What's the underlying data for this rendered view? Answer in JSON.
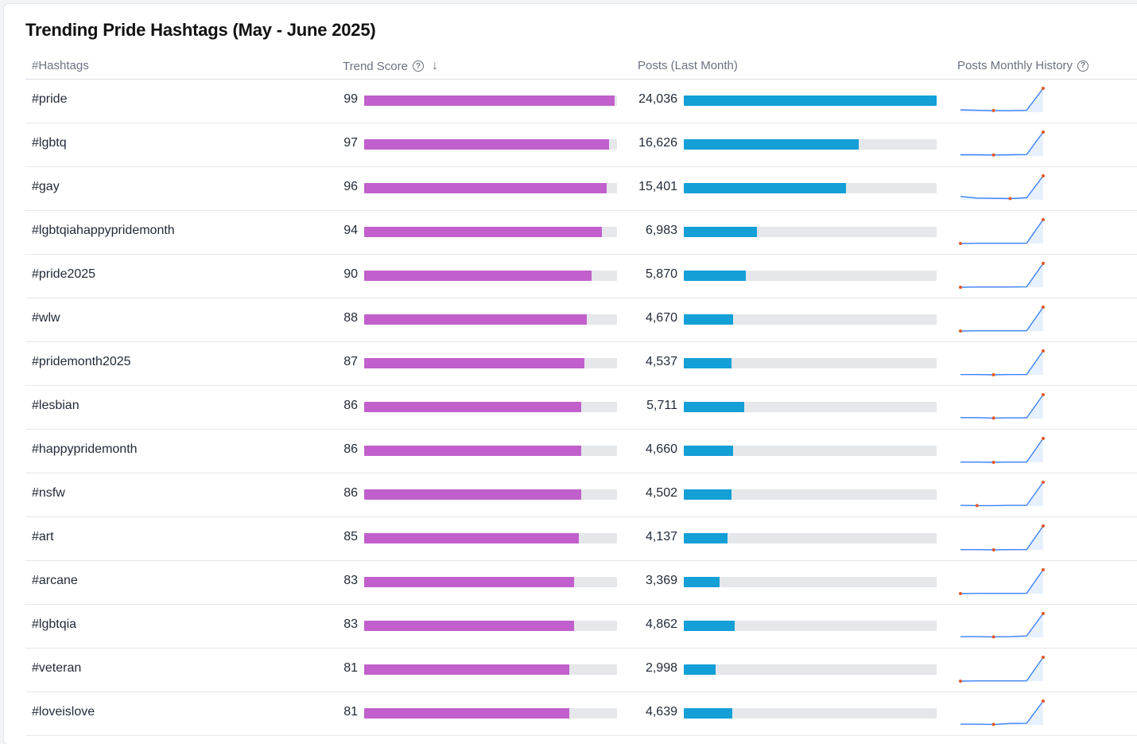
{
  "title": "Trending Pride Hashtags (May - June 2025)",
  "headers": {
    "hashtags": "#Hashtags",
    "trend_score": "Trend Score",
    "posts": "Posts (Last Month)",
    "history": "Posts Monthly History"
  },
  "colors": {
    "score_bar": "#c160cc",
    "posts_bar": "#149fd7",
    "track": "#e5e7eb",
    "spark_line": "#3b82f6",
    "spark_dot": "#e2582a"
  },
  "scale": {
    "score_max": 100,
    "posts_max": 24036
  },
  "rows": [
    {
      "tag": "#pride",
      "score": 99,
      "posts": "24,036",
      "posts_value": 24036,
      "history": [
        10,
        8,
        7,
        7,
        8,
        100
      ],
      "min_index": 2
    },
    {
      "tag": "#lgbtq",
      "score": 97,
      "posts": "16,626",
      "posts_value": 16626,
      "history": [
        5,
        5,
        4,
        5,
        6,
        100
      ],
      "min_index": 2
    },
    {
      "tag": "#gay",
      "score": 96,
      "posts": "15,401",
      "posts_value": 15401,
      "history": [
        14,
        7,
        6,
        5,
        8,
        100
      ],
      "min_index": 3
    },
    {
      "tag": "#lgbtqiahappypridemonth",
      "score": 94,
      "posts": "6,983",
      "posts_value": 6983,
      "history": [
        0,
        1,
        1,
        1,
        1,
        100
      ],
      "min_index": 0
    },
    {
      "tag": "#pride2025",
      "score": 90,
      "posts": "5,870",
      "posts_value": 5870,
      "history": [
        0,
        1,
        1,
        1,
        2,
        100
      ],
      "min_index": 0
    },
    {
      "tag": "#wlw",
      "score": 88,
      "posts": "4,670",
      "posts_value": 4670,
      "history": [
        0,
        1,
        1,
        1,
        1,
        100
      ],
      "min_index": 0
    },
    {
      "tag": "#pridemonth2025",
      "score": 87,
      "posts": "4,537",
      "posts_value": 4537,
      "history": [
        1,
        1,
        0,
        1,
        1,
        100
      ],
      "min_index": 2
    },
    {
      "tag": "#lesbian",
      "score": 86,
      "posts": "5,711",
      "posts_value": 5711,
      "history": [
        4,
        4,
        2,
        3,
        3,
        100
      ],
      "min_index": 2
    },
    {
      "tag": "#happypridemonth",
      "score": 86,
      "posts": "4,660",
      "posts_value": 4660,
      "history": [
        1,
        1,
        0,
        1,
        1,
        100
      ],
      "min_index": 2
    },
    {
      "tag": "#nsfw",
      "score": 86,
      "posts": "4,502",
      "posts_value": 4502,
      "history": [
        3,
        2,
        2,
        3,
        3,
        100
      ],
      "min_index": 1
    },
    {
      "tag": "#art",
      "score": 85,
      "posts": "4,137",
      "posts_value": 4137,
      "history": [
        1,
        1,
        0,
        1,
        1,
        100
      ],
      "min_index": 2
    },
    {
      "tag": "#arcane",
      "score": 83,
      "posts": "3,369",
      "posts_value": 3369,
      "history": [
        0,
        1,
        1,
        1,
        1,
        100
      ],
      "min_index": 0
    },
    {
      "tag": "#lgbtqia",
      "score": 83,
      "posts": "4,862",
      "posts_value": 4862,
      "history": [
        3,
        3,
        2,
        3,
        6,
        100
      ],
      "min_index": 2
    },
    {
      "tag": "#veteran",
      "score": 81,
      "posts": "2,998",
      "posts_value": 2998,
      "history": [
        0,
        1,
        1,
        1,
        1,
        100
      ],
      "min_index": 0
    },
    {
      "tag": "#loveislove",
      "score": 81,
      "posts": "4,639",
      "posts_value": 4639,
      "history": [
        3,
        3,
        2,
        6,
        7,
        100
      ],
      "min_index": 2
    }
  ]
}
